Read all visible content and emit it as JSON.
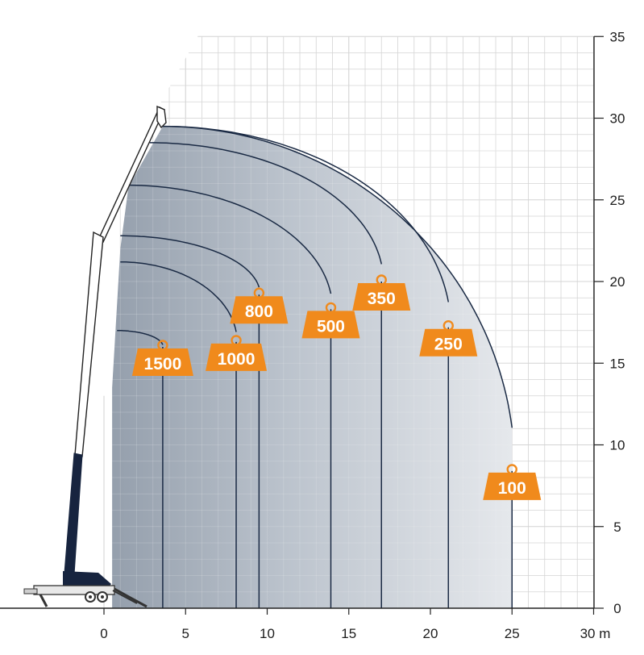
{
  "chart_data": {
    "type": "area",
    "title": "",
    "xlabel": "m",
    "ylabel": "",
    "xlim": [
      0,
      30
    ],
    "ylim": [
      0,
      35
    ],
    "x_ticks": [
      0,
      5,
      10,
      15,
      20,
      25,
      30
    ],
    "x_tick_labels": [
      "0",
      "5",
      "10",
      "15",
      "20",
      "25",
      "30 m"
    ],
    "y_ticks": [
      0,
      5,
      10,
      15,
      20,
      25,
      30,
      35
    ],
    "y_tick_labels": [
      "0",
      "5",
      "10",
      "15",
      "20",
      "25",
      "30",
      "35"
    ],
    "grid": true,
    "series": [
      {
        "label": "1500",
        "max_radius": 3.6,
        "max_height": 17.0,
        "hook_height": 16.0
      },
      {
        "label": "1000",
        "max_radius": 8.1,
        "max_height": 21.2,
        "hook_height": 16.3
      },
      {
        "label": "800",
        "max_radius": 9.5,
        "max_height": 22.8,
        "hook_height": 19.2
      },
      {
        "label": "500",
        "max_radius": 13.9,
        "max_height": 25.9,
        "hook_height": 18.3
      },
      {
        "label": "350",
        "max_radius": 17.0,
        "max_height": 28.5,
        "hook_height": 20.0
      },
      {
        "label": "250",
        "max_radius": 21.1,
        "max_height": 29.5,
        "hook_height": 17.2
      },
      {
        "label": "100",
        "max_radius": 25.0,
        "max_height": 29.5,
        "hook_height": 8.4
      }
    ],
    "colors": {
      "curve": "#1a2a44",
      "label_fill": "#f08a1c",
      "fill_outer": "#d9dee5",
      "fill_inner": "#9aa5b3",
      "grid": "#d4d4d4",
      "boom_dark": "#17243f",
      "axis": "#222222"
    }
  }
}
